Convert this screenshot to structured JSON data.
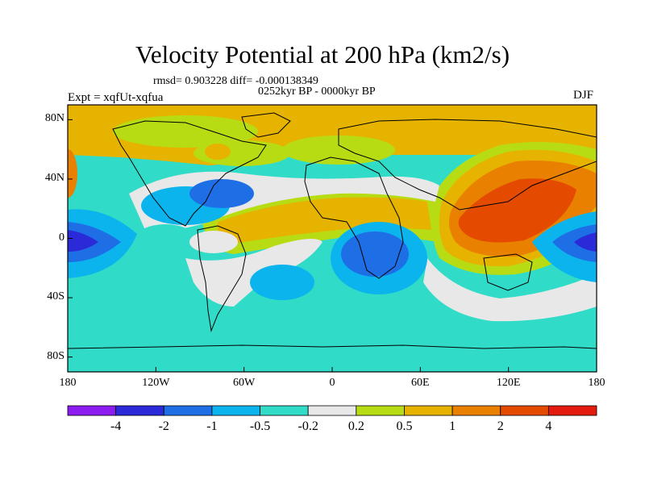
{
  "title": "Velocity Potential at 200 hPa (km2/s)",
  "stats": "rmsd= 0.903228 diff= -0.000138349",
  "period": "0252kyr BP - 0000kyr BP",
  "experiment": "Expt = xqfUt-xqfua",
  "season": "DJF",
  "map": {
    "lon_ticks": [
      "180",
      "120W",
      "60W",
      "0",
      "60E",
      "120E",
      "180"
    ],
    "lat_ticks": [
      "80N",
      "40N",
      "0",
      "40S",
      "80S"
    ]
  },
  "colorbar": {
    "labels": [
      "-4",
      "-2",
      "-1",
      "-0.5",
      "-0.2",
      "0.2",
      "0.5",
      "1",
      "2",
      "4"
    ],
    "colors": [
      "#8c1cf0",
      "#2a2ad8",
      "#1e6ee6",
      "#0cb4ee",
      "#30dcc8",
      "#e8e8e8",
      "#b8dc14",
      "#e6b400",
      "#ea8000",
      "#e44a00",
      "#e41a0c"
    ]
  }
}
